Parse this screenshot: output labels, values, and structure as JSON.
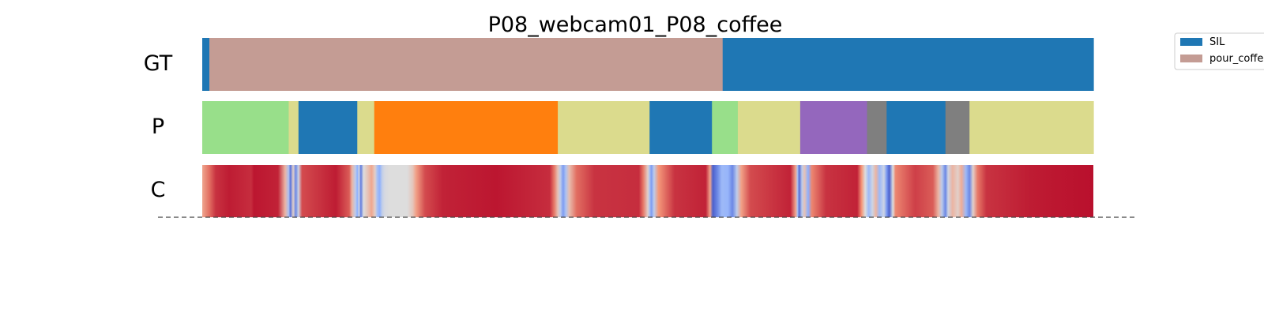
{
  "chart_data": {
    "type": "segmentation-timeline",
    "title": "P08_webcam01_P08_coffee",
    "x_range": [
      0,
      1
    ],
    "rows": [
      {
        "label": "GT",
        "segments": [
          {
            "start": 0.0,
            "end": 0.008,
            "class": "SIL",
            "color": "#1f77b4"
          },
          {
            "start": 0.008,
            "end": 0.584,
            "class": "pour_coffee",
            "color": "#c49c94"
          },
          {
            "start": 0.584,
            "end": 1.0,
            "class": "SIL",
            "color": "#1f77b4"
          }
        ]
      },
      {
        "label": "P",
        "segments": [
          {
            "start": 0.0,
            "end": 0.097,
            "color": "#98df8a"
          },
          {
            "start": 0.097,
            "end": 0.108,
            "color": "#dbdb8d"
          },
          {
            "start": 0.108,
            "end": 0.174,
            "color": "#1f77b4"
          },
          {
            "start": 0.174,
            "end": 0.193,
            "color": "#dbdb8d"
          },
          {
            "start": 0.193,
            "end": 0.399,
            "color": "#ff7f0e"
          },
          {
            "start": 0.399,
            "end": 0.502,
            "color": "#dbdb8d"
          },
          {
            "start": 0.502,
            "end": 0.572,
            "color": "#1f77b4"
          },
          {
            "start": 0.572,
            "end": 0.601,
            "color": "#98df8a"
          },
          {
            "start": 0.601,
            "end": 0.671,
            "color": "#dbdb8d"
          },
          {
            "start": 0.671,
            "end": 0.746,
            "color": "#9467bd"
          },
          {
            "start": 0.746,
            "end": 0.768,
            "color": "#7f7f7f"
          },
          {
            "start": 0.768,
            "end": 0.834,
            "color": "#1f77b4"
          },
          {
            "start": 0.834,
            "end": 0.861,
            "color": "#7f7f7f"
          },
          {
            "start": 0.861,
            "end": 1.0,
            "color": "#dbdb8d"
          }
        ]
      },
      {
        "label": "C",
        "colormap": "coolwarm",
        "stops": [
          [
            0.0,
            0.7
          ],
          [
            0.008,
            0.82
          ],
          [
            0.015,
            0.92
          ],
          [
            0.03,
            0.96
          ],
          [
            0.055,
            0.93
          ],
          [
            0.058,
            0.97
          ],
          [
            0.085,
            0.95
          ],
          [
            0.093,
            0.65
          ],
          [
            0.097,
            0.35
          ],
          [
            0.099,
            0.1
          ],
          [
            0.102,
            0.55
          ],
          [
            0.105,
            0.15
          ],
          [
            0.108,
            0.45
          ],
          [
            0.112,
            0.88
          ],
          [
            0.15,
            0.96
          ],
          [
            0.165,
            0.85
          ],
          [
            0.168,
            0.65
          ],
          [
            0.172,
            0.4
          ],
          [
            0.174,
            0.25
          ],
          [
            0.176,
            0.45
          ],
          [
            0.178,
            0.12
          ],
          [
            0.181,
            0.5
          ],
          [
            0.186,
            0.6
          ],
          [
            0.19,
            0.7
          ],
          [
            0.194,
            0.55
          ],
          [
            0.196,
            0.35
          ],
          [
            0.199,
            0.25
          ],
          [
            0.202,
            0.42
          ],
          [
            0.205,
            0.48
          ],
          [
            0.21,
            0.5
          ],
          [
            0.23,
            0.5
          ],
          [
            0.236,
            0.58
          ],
          [
            0.24,
            0.72
          ],
          [
            0.25,
            0.88
          ],
          [
            0.27,
            0.95
          ],
          [
            0.33,
            0.97
          ],
          [
            0.39,
            0.93
          ],
          [
            0.395,
            0.8
          ],
          [
            0.399,
            0.6
          ],
          [
            0.402,
            0.4
          ],
          [
            0.405,
            0.2
          ],
          [
            0.408,
            0.35
          ],
          [
            0.412,
            0.62
          ],
          [
            0.42,
            0.82
          ],
          [
            0.44,
            0.92
          ],
          [
            0.49,
            0.93
          ],
          [
            0.495,
            0.8
          ],
          [
            0.5,
            0.55
          ],
          [
            0.502,
            0.35
          ],
          [
            0.504,
            0.2
          ],
          [
            0.507,
            0.4
          ],
          [
            0.512,
            0.75
          ],
          [
            0.53,
            0.92
          ],
          [
            0.565,
            0.95
          ],
          [
            0.57,
            0.7
          ],
          [
            0.573,
            0.05
          ],
          [
            0.578,
            0.15
          ],
          [
            0.583,
            0.3
          ],
          [
            0.59,
            0.28
          ],
          [
            0.595,
            0.15
          ],
          [
            0.6,
            0.4
          ],
          [
            0.605,
            0.72
          ],
          [
            0.615,
            0.88
          ],
          [
            0.66,
            0.95
          ],
          [
            0.666,
            0.7
          ],
          [
            0.668,
            0.35
          ],
          [
            0.67,
            0.08
          ],
          [
            0.673,
            0.4
          ],
          [
            0.676,
            0.6
          ],
          [
            0.68,
            0.25
          ],
          [
            0.684,
            0.78
          ],
          [
            0.7,
            0.92
          ],
          [
            0.735,
            0.95
          ],
          [
            0.74,
            0.75
          ],
          [
            0.744,
            0.5
          ],
          [
            0.748,
            0.3
          ],
          [
            0.752,
            0.45
          ],
          [
            0.756,
            0.65
          ],
          [
            0.76,
            0.3
          ],
          [
            0.765,
            0.45
          ],
          [
            0.768,
            0.2
          ],
          [
            0.771,
            0.05
          ],
          [
            0.775,
            0.5
          ],
          [
            0.778,
            0.78
          ],
          [
            0.8,
            0.9
          ],
          [
            0.82,
            0.85
          ],
          [
            0.826,
            0.65
          ],
          [
            0.83,
            0.4
          ],
          [
            0.834,
            0.15
          ],
          [
            0.837,
            0.45
          ],
          [
            0.842,
            0.65
          ],
          [
            0.848,
            0.55
          ],
          [
            0.852,
            0.68
          ],
          [
            0.857,
            0.3
          ],
          [
            0.861,
            0.15
          ],
          [
            0.865,
            0.55
          ],
          [
            0.87,
            0.8
          ],
          [
            0.88,
            0.92
          ],
          [
            0.93,
            0.96
          ],
          [
            0.96,
            0.97
          ],
          [
            1.0,
            0.98
          ]
        ]
      }
    ],
    "legend": {
      "placement": "top-right",
      "entries": [
        {
          "label": "SIL",
          "color": "#1f77b4"
        },
        {
          "label": "pour_coffee",
          "color": "#c49c94"
        }
      ]
    }
  }
}
